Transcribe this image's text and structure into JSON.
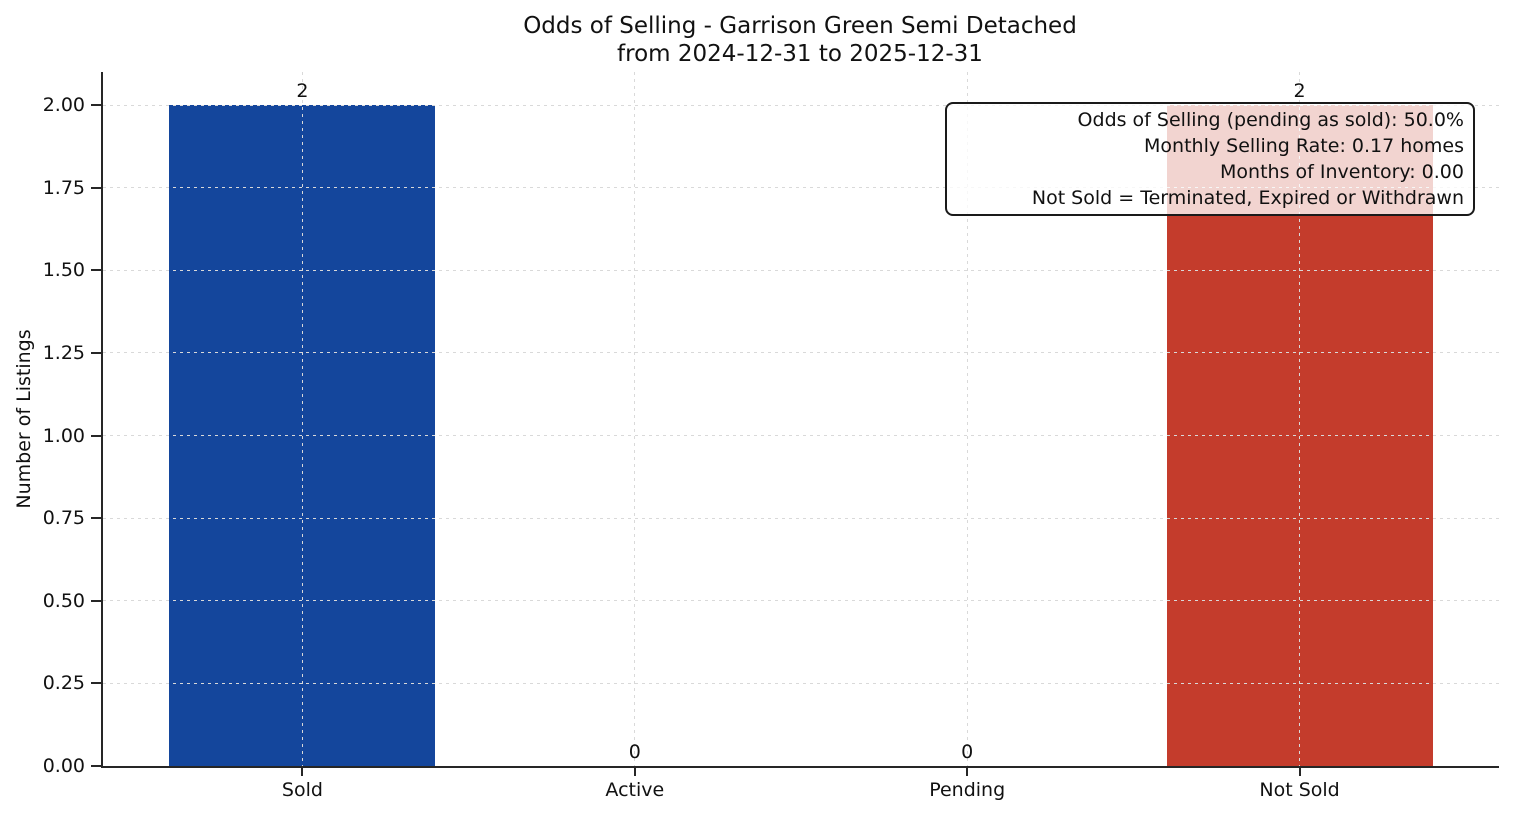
{
  "chart_data": {
    "type": "bar",
    "title": "Odds of Selling - Garrison Green Semi Detached",
    "subtitle": "from 2024-12-31 to 2025-12-31",
    "ylabel": "Number of Listings",
    "xlabel": "",
    "categories": [
      "Sold",
      "Active",
      "Pending",
      "Not Sold"
    ],
    "values": [
      2,
      0,
      0,
      2
    ],
    "colors": [
      "#14469c",
      null,
      null,
      "#c43c2c"
    ],
    "ylim": [
      0,
      2.1
    ],
    "yticks": [
      "0.00",
      "0.25",
      "0.50",
      "0.75",
      "1.00",
      "1.25",
      "1.50",
      "1.75",
      "2.00"
    ],
    "grid": {
      "linestyle": "dashed",
      "color": "#d9d9d9"
    },
    "spine_color": "#262626",
    "annotation": {
      "lines": [
        "Odds of Selling (pending as sold): 50.0%",
        "Monthly Selling Rate: 0.17 homes",
        "Months of Inventory: 0.00",
        "Not Sold = Terminated, Expired or Withdrawn"
      ]
    }
  }
}
